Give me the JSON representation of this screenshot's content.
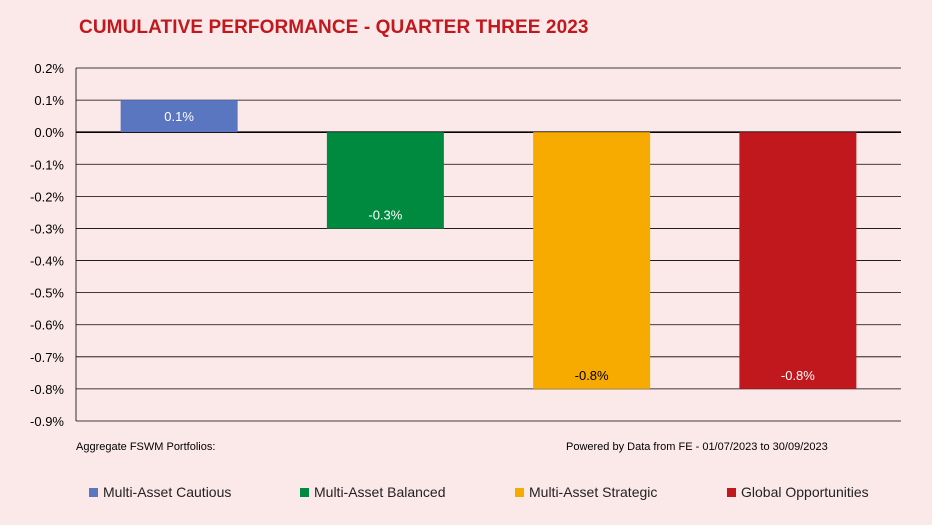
{
  "title": "CUMULATIVE PERFORMANCE - QUARTER THREE 2023",
  "footer": {
    "left": "Aggregate FSWM Portfolios:",
    "right": "Powered by Data from FE - 01/07/2023 to 30/09/2023"
  },
  "chart_data": {
    "type": "bar",
    "categories": [
      "Multi-Asset Cautious",
      "Multi-Asset Balanced",
      "Multi-Asset Strategic",
      "Global Opportunities"
    ],
    "values": [
      0.1,
      -0.3,
      -0.8,
      -0.8
    ],
    "data_labels": [
      "0.1%",
      "-0.3%",
      "-0.8%",
      "-0.8%"
    ],
    "colors": [
      "#5b76c1",
      "#008a3f",
      "#f7aa00",
      "#c0181d"
    ],
    "ylim": [
      -0.9,
      0.2
    ],
    "yticks": [
      "0.2%",
      "0.1%",
      "0.0%",
      "-0.1%",
      "-0.2%",
      "-0.3%",
      "-0.4%",
      "-0.5%",
      "-0.6%",
      "-0.7%",
      "-0.8%",
      "-0.9%"
    ],
    "grid": true,
    "legend_position": "bottom",
    "title": "CUMULATIVE PERFORMANCE - QUARTER THREE 2023",
    "xlabel": "",
    "ylabel": ""
  }
}
